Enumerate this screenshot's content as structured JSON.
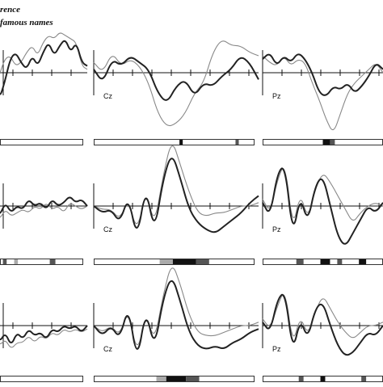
{
  "legend": {
    "line1": "rence",
    "line2": "famous names"
  },
  "colors": {
    "thick": "#222222",
    "thin": "#888888",
    "axis": "#111111",
    "bar_frame": "#333333",
    "sig_strong": "#111111",
    "sig_mid": "#555555",
    "sig_light": "#aaaaaa"
  },
  "chart_data": {
    "type": "line",
    "description_of_layout": "3 rows x 3 electrode panels (left panel cropped); each panel has a thick and a thin ERP waveform over time, with a significance bar beneath",
    "rows": [
      {
        "panels": [
          {
            "electrode": "",
            "thick": [
              0.2,
              -0.8,
              -0.3,
              0.4,
              0.6,
              0.3,
              0.1,
              0.5,
              0.2,
              0.6,
              0.9,
              0.5,
              0.8,
              1.0,
              0.6,
              0.9,
              0.3,
              0.2
            ],
            "thin": [
              -0.5,
              -0.1,
              0.4,
              0.5,
              0.2,
              0.3,
              0.6,
              0.8,
              0.5,
              0.9,
              1.1,
              1.0,
              1.2,
              1.1,
              1.0,
              0.9,
              0.2,
              0.1
            ],
            "sig": []
          },
          {
            "electrode": "Cz",
            "thick": [
              0.1,
              -0.3,
              0.4,
              0.2,
              0.5,
              0.3,
              0.1,
              -0.6,
              -0.9,
              -0.4,
              -0.2,
              -0.7,
              -0.3,
              -0.4,
              -0.1,
              0.1,
              0.5,
              0.3,
              -0.2
            ],
            "thin": [
              0.3,
              0.0,
              0.6,
              0.2,
              0.4,
              0.2,
              -0.3,
              -1.2,
              -1.6,
              -1.5,
              -1.2,
              -0.6,
              -0.3,
              0.6,
              1.0,
              0.8,
              0.8,
              0.6,
              0.5
            ],
            "sig": [
              [
                0.52,
                0.54,
                "strong"
              ],
              [
                0.86,
                0.88,
                "mid"
              ]
            ]
          },
          {
            "electrode": "Pz",
            "thick": [
              0.4,
              0.6,
              0.2,
              0.5,
              0.3,
              0.6,
              0.4,
              0.0,
              -0.6,
              -0.7,
              -0.4,
              -0.5,
              -0.3,
              -0.6,
              -0.4,
              -0.1,
              0.3,
              0.1
            ],
            "thin": [
              0.5,
              0.3,
              0.2,
              0.5,
              0.2,
              0.4,
              0.3,
              -0.3,
              -0.8,
              -1.4,
              -1.8,
              -1.2,
              -0.6,
              -0.3,
              -0.1,
              0.1,
              0.3,
              0.0
            ],
            "sig": [
              [
                0.5,
                0.56,
                "strong"
              ],
              [
                0.56,
                0.6,
                "mid"
              ]
            ]
          }
        ]
      },
      {
        "panels": [
          {
            "electrode": "",
            "thick": [
              0.0,
              -0.3,
              0.1,
              -0.2,
              0.0,
              -0.1,
              0.2,
              0.0,
              0.1,
              -0.1,
              0.2,
              0.0,
              0.1,
              0.3,
              0.1,
              0.2,
              0.0
            ],
            "thin": [
              -0.2,
              -0.4,
              -0.1,
              -0.3,
              -0.2,
              -0.1,
              -0.2,
              0.0,
              -0.1,
              0.1,
              -0.1,
              0.0,
              -0.2,
              0.1,
              0.0,
              -0.1,
              0.0
            ],
            "sig": [
              [
                0.0,
                0.06,
                "strong"
              ],
              [
                0.1,
                0.14,
                "mid"
              ],
              [
                0.22,
                0.26,
                "light"
              ],
              [
                0.6,
                0.66,
                "mid"
              ]
            ]
          },
          {
            "electrode": "Cz",
            "thick": [
              0.0,
              -0.2,
              -0.1,
              -0.5,
              0.3,
              -1.0,
              0.6,
              -0.8,
              0.8,
              1.6,
              0.8,
              -0.1,
              -0.5,
              -0.7,
              -0.8,
              -0.6,
              -0.4,
              -0.2,
              0.1,
              0.3
            ],
            "thin": [
              0.0,
              -0.1,
              -0.1,
              -0.4,
              0.2,
              -0.8,
              0.5,
              -0.6,
              0.9,
              2.0,
              1.2,
              0.4,
              -0.2,
              -0.3,
              -0.2,
              -0.2,
              -0.1,
              0.0,
              0.0,
              0.1
            ],
            "sig": [
              [
                0.4,
                0.48,
                "light"
              ],
              [
                0.48,
                0.62,
                "strong"
              ],
              [
                0.62,
                0.7,
                "mid"
              ]
            ]
          },
          {
            "electrode": "Pz",
            "thick": [
              0.1,
              -0.3,
              1.0,
              1.2,
              -0.9,
              0.3,
              -0.5,
              0.6,
              0.9,
              0.0,
              -0.9,
              -1.2,
              -0.8,
              -0.4,
              0.0,
              -0.2,
              0.1
            ],
            "thin": [
              0.2,
              -0.2,
              0.8,
              1.3,
              -0.7,
              0.4,
              -0.4,
              0.5,
              1.0,
              0.7,
              0.3,
              -0.1,
              -0.5,
              -0.2,
              0.0,
              0.1,
              0.0
            ],
            "sig": [
              [
                0.28,
                0.34,
                "mid"
              ],
              [
                0.48,
                0.56,
                "strong"
              ],
              [
                0.62,
                0.66,
                "mid"
              ],
              [
                0.8,
                0.86,
                "strong"
              ]
            ]
          }
        ]
      },
      {
        "panels": [
          {
            "electrode": "",
            "thick": [
              0.0,
              -0.5,
              -0.2,
              -0.6,
              -0.2,
              -0.4,
              -0.1,
              -0.3,
              -0.2,
              -0.4,
              -0.1,
              -0.2,
              0.0,
              -0.1,
              0.0,
              -0.2,
              0.0
            ],
            "thin": [
              -0.2,
              -0.6,
              -0.4,
              -0.7,
              -0.5,
              -0.5,
              -0.3,
              -0.5,
              -0.3,
              -0.4,
              -0.2,
              -0.3,
              -0.1,
              -0.2,
              -0.1,
              -0.2,
              -0.1
            ],
            "sig": []
          },
          {
            "electrode": "Cz",
            "thick": [
              0.0,
              -0.3,
              0.0,
              -0.4,
              0.6,
              -1.1,
              0.5,
              -0.7,
              0.8,
              1.5,
              0.7,
              -0.2,
              -0.6,
              -0.7,
              -0.6,
              -0.7,
              -0.5,
              -0.4,
              -0.2,
              -0.1
            ],
            "thin": [
              0.0,
              -0.2,
              0.0,
              -0.3,
              0.5,
              -0.9,
              0.4,
              -0.5,
              0.9,
              1.9,
              1.2,
              0.3,
              -0.2,
              -0.3,
              -0.3,
              -0.2,
              -0.1,
              0.0,
              0.0,
              0.1
            ],
            "sig": [
              [
                0.38,
                0.44,
                "light"
              ],
              [
                0.44,
                0.56,
                "strong"
              ],
              [
                0.56,
                0.64,
                "mid"
              ]
            ]
          },
          {
            "electrode": "Pz",
            "thick": [
              0.1,
              -0.2,
              0.8,
              1.0,
              -0.8,
              0.2,
              -0.4,
              0.5,
              0.7,
              0.0,
              -0.6,
              -0.9,
              -0.8,
              -0.5,
              -0.2,
              -0.3,
              0.0
            ],
            "thin": [
              0.2,
              -0.1,
              0.6,
              1.1,
              -0.6,
              0.3,
              -0.3,
              0.4,
              0.9,
              0.5,
              0.1,
              -0.2,
              -0.4,
              -0.2,
              0.0,
              0.0,
              0.1
            ],
            "sig": [
              [
                0.3,
                0.34,
                "mid"
              ],
              [
                0.48,
                0.52,
                "strong"
              ],
              [
                0.82,
                0.86,
                "mid"
              ]
            ]
          }
        ]
      }
    ]
  }
}
